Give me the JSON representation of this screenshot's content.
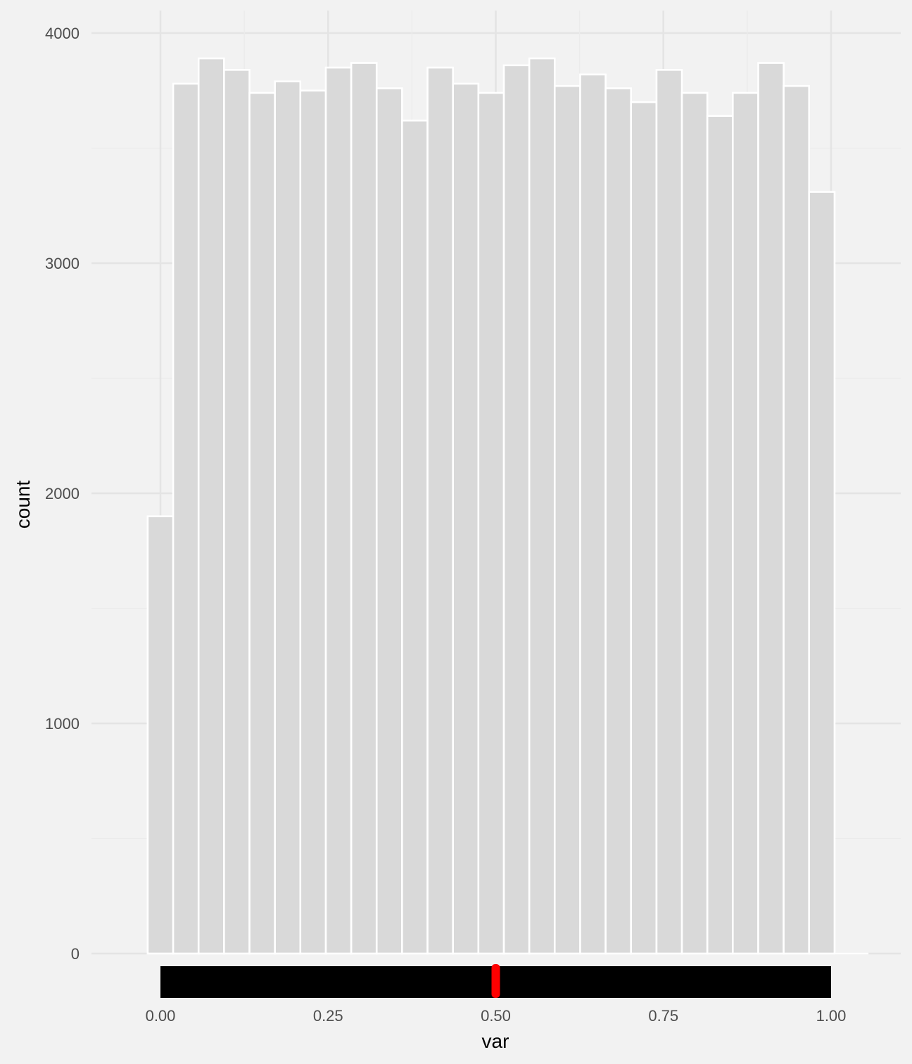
{
  "chart_data": {
    "type": "bar",
    "subtype": "histogram",
    "xlabel": "var",
    "ylabel": "count",
    "xlim": [
      -0.04,
      1.06
    ],
    "ylim": [
      0,
      4080
    ],
    "x_ticks": [
      0.0,
      0.25,
      0.5,
      0.75,
      1.0
    ],
    "x_tick_labels": [
      "0.00",
      "0.25",
      "0.50",
      "0.75",
      "1.00"
    ],
    "y_ticks": [
      0,
      1000,
      2000,
      3000,
      4000
    ],
    "y_tick_labels": [
      "0",
      "1000",
      "2000",
      "3000",
      "4000"
    ],
    "bin_width": 0.0379,
    "bins": [
      {
        "x0": -0.019,
        "x1": 0.019,
        "count": 1900
      },
      {
        "x0": 0.019,
        "x1": 0.0569,
        "count": 3780
      },
      {
        "x0": 0.0569,
        "x1": 0.0948,
        "count": 3890
      },
      {
        "x0": 0.0948,
        "x1": 0.1328,
        "count": 3840
      },
      {
        "x0": 0.1328,
        "x1": 0.1707,
        "count": 3740
      },
      {
        "x0": 0.1707,
        "x1": 0.2086,
        "count": 3790
      },
      {
        "x0": 0.2086,
        "x1": 0.2466,
        "count": 3750
      },
      {
        "x0": 0.2466,
        "x1": 0.2845,
        "count": 3850
      },
      {
        "x0": 0.2845,
        "x1": 0.3224,
        "count": 3870
      },
      {
        "x0": 0.3224,
        "x1": 0.3603,
        "count": 3760
      },
      {
        "x0": 0.3603,
        "x1": 0.3983,
        "count": 3620
      },
      {
        "x0": 0.3983,
        "x1": 0.4362,
        "count": 3850
      },
      {
        "x0": 0.4362,
        "x1": 0.4741,
        "count": 3780
      },
      {
        "x0": 0.4741,
        "x1": 0.5121,
        "count": 3740
      },
      {
        "x0": 0.5121,
        "x1": 0.55,
        "count": 3860
      },
      {
        "x0": 0.55,
        "x1": 0.5879,
        "count": 3890
      },
      {
        "x0": 0.5879,
        "x1": 0.6259,
        "count": 3770
      },
      {
        "x0": 0.6259,
        "x1": 0.6638,
        "count": 3820
      },
      {
        "x0": 0.6638,
        "x1": 0.7017,
        "count": 3760
      },
      {
        "x0": 0.7017,
        "x1": 0.7397,
        "count": 3700
      },
      {
        "x0": 0.7397,
        "x1": 0.7776,
        "count": 3840
      },
      {
        "x0": 0.7776,
        "x1": 0.8155,
        "count": 3740
      },
      {
        "x0": 0.8155,
        "x1": 0.8534,
        "count": 3640
      },
      {
        "x0": 0.8534,
        "x1": 0.8914,
        "count": 3740
      },
      {
        "x0": 0.8914,
        "x1": 0.9293,
        "count": 3870
      },
      {
        "x0": 0.9293,
        "x1": 0.9672,
        "count": 3770
      },
      {
        "x0": 0.9672,
        "x1": 1.0052,
        "count": 3310
      }
    ],
    "range_bar": {
      "from": 0.0,
      "to": 1.0,
      "color": "#000000"
    },
    "marker": {
      "value": 0.5,
      "color": "#ff0000"
    },
    "grid": true,
    "colors": {
      "background": "#f2f2f2",
      "bar_fill": "#d9d9d9",
      "bar_outline": "#ffffff",
      "grid": "#e4e4e4"
    }
  }
}
